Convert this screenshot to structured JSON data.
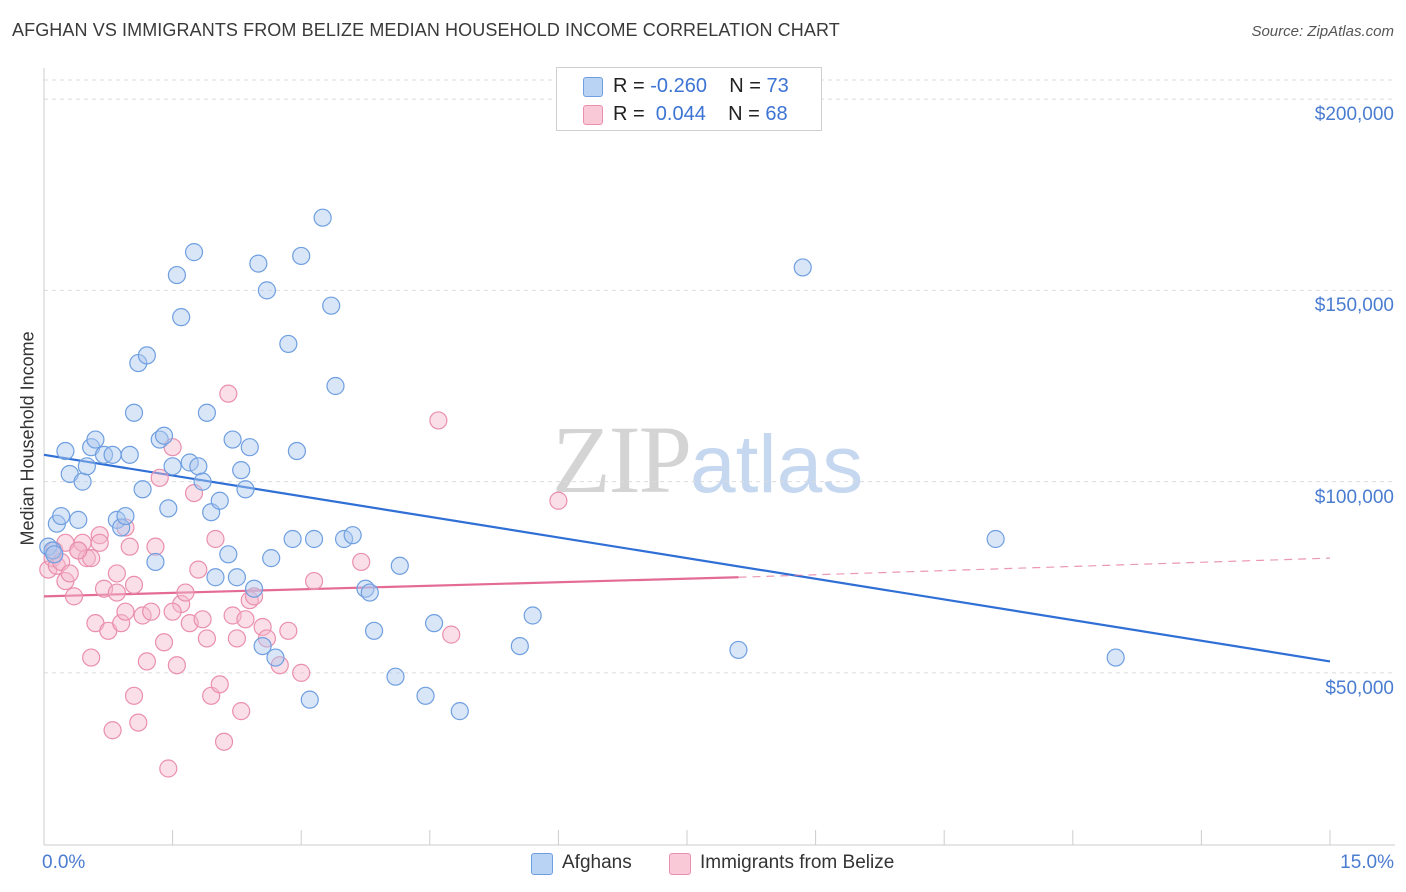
{
  "title": "AFGHAN VS IMMIGRANTS FROM BELIZE MEDIAN HOUSEHOLD INCOME CORRELATION CHART",
  "source": "Source: ZipAtlas.com",
  "watermark": {
    "zip": "ZIP",
    "atlas": "atlas"
  },
  "colors": {
    "afghans_fill": "#aac8f0",
    "afghans_stroke": "#6f9fe0",
    "afghans_line": "#2f6fd6",
    "belize_fill": "#f5b8cb",
    "belize_stroke": "#ea8fae",
    "belize_line": "#e36b96",
    "axis_text": "#4a7cd0",
    "grid": "#dcdcdc"
  },
  "legend_top": [
    {
      "r_label": "R = ",
      "r_value": "-0.260",
      "n_label": "N = ",
      "n_value": "73"
    },
    {
      "r_label": "R = ",
      "r_value": " 0.044",
      "n_label": "N = ",
      "n_value": "68"
    }
  ],
  "chart_data": {
    "type": "scatter",
    "title": "AFGHAN VS IMMIGRANTS FROM BELIZE MEDIAN HOUSEHOLD INCOME CORRELATION CHART",
    "xlabel": "",
    "ylabel": "Median Household Income",
    "xlim": [
      0,
      15
    ],
    "ylim": [
      5000,
      205000
    ],
    "x_ticks": [
      "0.0%",
      "15.0%"
    ],
    "y_ticks": [
      "$50,000",
      "$100,000",
      "$150,000",
      "$200,000"
    ],
    "y_tick_values": [
      50000,
      100000,
      150000,
      200000
    ],
    "grid": "horizontal dashed",
    "legend": "bottom-center",
    "series": [
      {
        "name": "Afghans",
        "points": [
          [
            0.05,
            83000
          ],
          [
            0.1,
            82000
          ],
          [
            0.12,
            81000
          ],
          [
            0.15,
            89000
          ],
          [
            0.2,
            91000
          ],
          [
            0.25,
            108000
          ],
          [
            0.3,
            102000
          ],
          [
            0.4,
            90000
          ],
          [
            0.45,
            100000
          ],
          [
            0.5,
            104000
          ],
          [
            0.55,
            109000
          ],
          [
            0.6,
            111000
          ],
          [
            0.7,
            107000
          ],
          [
            0.8,
            107000
          ],
          [
            0.85,
            90000
          ],
          [
            0.9,
            88000
          ],
          [
            0.95,
            91000
          ],
          [
            1.0,
            107000
          ],
          [
            1.05,
            118000
          ],
          [
            1.1,
            131000
          ],
          [
            1.15,
            98000
          ],
          [
            1.2,
            133000
          ],
          [
            1.3,
            79000
          ],
          [
            1.35,
            111000
          ],
          [
            1.4,
            112000
          ],
          [
            1.45,
            93000
          ],
          [
            1.5,
            104000
          ],
          [
            1.55,
            154000
          ],
          [
            1.6,
            143000
          ],
          [
            1.7,
            105000
          ],
          [
            1.75,
            160000
          ],
          [
            1.8,
            104000
          ],
          [
            1.85,
            100000
          ],
          [
            1.9,
            118000
          ],
          [
            1.95,
            92000
          ],
          [
            2.0,
            75000
          ],
          [
            2.05,
            95000
          ],
          [
            2.15,
            81000
          ],
          [
            2.2,
            111000
          ],
          [
            2.25,
            75000
          ],
          [
            2.3,
            103000
          ],
          [
            2.35,
            98000
          ],
          [
            2.4,
            109000
          ],
          [
            2.45,
            72000
          ],
          [
            2.5,
            157000
          ],
          [
            2.55,
            57000
          ],
          [
            2.6,
            150000
          ],
          [
            2.65,
            80000
          ],
          [
            2.7,
            54000
          ],
          [
            2.85,
            136000
          ],
          [
            2.9,
            85000
          ],
          [
            2.95,
            108000
          ],
          [
            3.0,
            159000
          ],
          [
            3.1,
            43000
          ],
          [
            3.15,
            85000
          ],
          [
            3.25,
            169000
          ],
          [
            3.35,
            146000
          ],
          [
            3.4,
            125000
          ],
          [
            3.5,
            85000
          ],
          [
            3.6,
            86000
          ],
          [
            3.75,
            72000
          ],
          [
            3.8,
            71000
          ],
          [
            3.85,
            61000
          ],
          [
            4.1,
            49000
          ],
          [
            4.15,
            78000
          ],
          [
            4.45,
            44000
          ],
          [
            4.55,
            63000
          ],
          [
            4.85,
            40000
          ],
          [
            5.55,
            57000
          ],
          [
            5.7,
            65000
          ],
          [
            8.1,
            56000
          ],
          [
            8.85,
            156000
          ],
          [
            11.1,
            85000
          ],
          [
            12.5,
            54000
          ]
        ],
        "trend": {
          "x": [
            0,
            15
          ],
          "y": [
            107000,
            53000
          ]
        }
      },
      {
        "name": "Immigrants from Belize",
        "points": [
          [
            0.05,
            77000
          ],
          [
            0.1,
            80000
          ],
          [
            0.12,
            82000
          ],
          [
            0.15,
            78000
          ],
          [
            0.2,
            79000
          ],
          [
            0.25,
            74000
          ],
          [
            0.3,
            76000
          ],
          [
            0.35,
            70000
          ],
          [
            0.4,
            82000
          ],
          [
            0.45,
            84000
          ],
          [
            0.5,
            80000
          ],
          [
            0.55,
            54000
          ],
          [
            0.6,
            63000
          ],
          [
            0.65,
            86000
          ],
          [
            0.7,
            72000
          ],
          [
            0.75,
            61000
          ],
          [
            0.8,
            35000
          ],
          [
            0.85,
            71000
          ],
          [
            0.9,
            63000
          ],
          [
            0.95,
            66000
          ],
          [
            1.0,
            83000
          ],
          [
            1.05,
            44000
          ],
          [
            1.1,
            37000
          ],
          [
            1.15,
            65000
          ],
          [
            1.2,
            53000
          ],
          [
            1.25,
            66000
          ],
          [
            1.3,
            83000
          ],
          [
            1.35,
            101000
          ],
          [
            1.4,
            58000
          ],
          [
            1.45,
            25000
          ],
          [
            1.5,
            109000
          ],
          [
            1.55,
            52000
          ],
          [
            1.6,
            68000
          ],
          [
            1.65,
            71000
          ],
          [
            1.7,
            63000
          ],
          [
            1.75,
            97000
          ],
          [
            1.8,
            77000
          ],
          [
            1.85,
            64000
          ],
          [
            1.9,
            59000
          ],
          [
            1.95,
            44000
          ],
          [
            2.0,
            85000
          ],
          [
            2.05,
            47000
          ],
          [
            2.1,
            32000
          ],
          [
            2.15,
            123000
          ],
          [
            2.2,
            65000
          ],
          [
            2.25,
            59000
          ],
          [
            2.3,
            40000
          ],
          [
            2.35,
            64000
          ],
          [
            2.4,
            69000
          ],
          [
            2.45,
            70000
          ],
          [
            2.55,
            62000
          ],
          [
            2.6,
            59000
          ],
          [
            2.75,
            52000
          ],
          [
            2.85,
            61000
          ],
          [
            3.0,
            50000
          ],
          [
            3.15,
            74000
          ],
          [
            3.7,
            79000
          ],
          [
            4.6,
            116000
          ],
          [
            4.75,
            60000
          ],
          [
            6.0,
            95000
          ],
          [
            0.55,
            80000
          ],
          [
            0.65,
            84000
          ],
          [
            0.95,
            88000
          ],
          [
            1.05,
            73000
          ],
          [
            0.25,
            84000
          ],
          [
            0.4,
            82000
          ],
          [
            0.85,
            76000
          ],
          [
            1.5,
            66000
          ]
        ],
        "trend": {
          "x": [
            0,
            8.1
          ],
          "y": [
            70000,
            75000
          ]
        },
        "trend_extension": {
          "x": [
            8.1,
            15
          ],
          "y": [
            75000,
            80000
          ]
        }
      }
    ]
  },
  "legend_bottom": [
    {
      "label": "Afghans"
    },
    {
      "label": "Immigrants from Belize"
    }
  ]
}
